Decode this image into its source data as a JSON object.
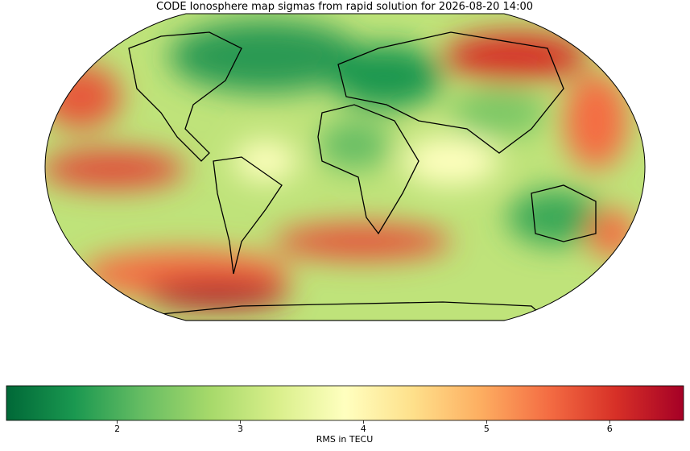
{
  "chart_data": {
    "type": "map",
    "title": "CODE Ionosphere map sigmas from rapid solution for 2026-08-20 14:00",
    "colorbar": {
      "label": "RMS in TECU",
      "lim": [
        1.1,
        6.6
      ],
      "ticks": [
        2,
        3,
        4,
        5,
        6
      ],
      "colors": [
        "#006837",
        "#1a9850",
        "#66bd63",
        "#a6d96a",
        "#d9ef8b",
        "#ffffbf",
        "#fee08b",
        "#fdae61",
        "#f46d43",
        "#d73027",
        "#a50026"
      ]
    }
  }
}
